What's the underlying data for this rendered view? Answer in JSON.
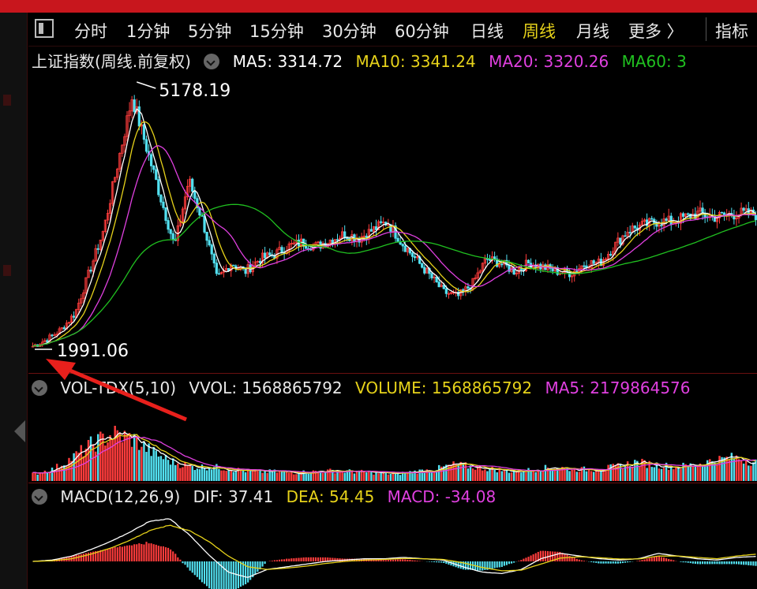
{
  "toolbar": {
    "periods": [
      "分时",
      "1分钟",
      "5分钟",
      "15分钟",
      "30分钟",
      "60分钟",
      "日线",
      "周线",
      "月线",
      "更多 〉"
    ],
    "active_period": "周线",
    "indicator_label": "指标"
  },
  "main": {
    "title": "上证指数(周线.前复权)",
    "ma": [
      {
        "label": "MA5: 3314.72",
        "color": "#ffffff"
      },
      {
        "label": "MA10: 3341.24",
        "color": "#e6d21a"
      },
      {
        "label": "MA20: 3320.26",
        "color": "#e040e0"
      },
      {
        "label": "MA60: 3",
        "color": "#20c020"
      }
    ],
    "high_label": "5178.19",
    "low_label": "1991.06"
  },
  "volume": {
    "title": "VOL-TDX(5,10)",
    "vvol": "VVOL: 1568865792",
    "volume": "VOLUME: 1568865792",
    "ma5": "MA5: 2179864576"
  },
  "macd": {
    "title": "MACD(12,26,9)",
    "dif": "DIF: 37.41",
    "dea": "DEA: 54.45",
    "macd": "MACD: -34.08"
  },
  "colors": {
    "up": "#ff3c3c",
    "down": "#52e0f0",
    "ma5": "#ffffff",
    "ma10": "#e6d21a",
    "ma20": "#e040e0",
    "ma60": "#20c020",
    "annotation_arrow": "#e8201c"
  },
  "chart_data": {
    "type": "candlestick",
    "instrument": "上证指数",
    "period": "周线",
    "ylim": [
      1991.06,
      5178.19
    ],
    "max": 5178.19,
    "min": 1991.06,
    "trend_close": [
      2000,
      2080,
      2200,
      2400,
      2900,
      3400,
      4200,
      5000,
      4400,
      3800,
      3200,
      4000,
      3500,
      2800,
      3000,
      2900,
      3050,
      3100,
      3200,
      3250,
      3200,
      3280,
      3350,
      3300,
      3400,
      3500,
      3250,
      3050,
      2850,
      2650,
      2600,
      2750,
      3050,
      3000,
      2900,
      3000,
      2950,
      2900,
      2880,
      3000,
      3000,
      3200,
      3400,
      3450,
      3500,
      3500,
      3550,
      3600,
      3550,
      3580,
      3600,
      3580
    ],
    "volume_trend": [
      0.15,
      0.25,
      0.5,
      0.8,
      1.0,
      0.9,
      0.6,
      0.4,
      0.3,
      0.3,
      0.25,
      0.2,
      0.2,
      0.18,
      0.2,
      0.22,
      0.2,
      0.18,
      0.15,
      0.2,
      0.25,
      0.35,
      0.3,
      0.25,
      0.2,
      0.25,
      0.3,
      0.25,
      0.25,
      0.3,
      0.4,
      0.35,
      0.3,
      0.35,
      0.45,
      0.5,
      0.4
    ],
    "dif_trend": [
      0,
      10,
      40,
      90,
      150,
      220,
      300,
      320,
      200,
      50,
      -80,
      -120,
      -60,
      -40,
      -20,
      0,
      10,
      20,
      20,
      30,
      20,
      10,
      -40,
      -80,
      -90,
      -60,
      20,
      60,
      40,
      20,
      10,
      20,
      60,
      40,
      20,
      10,
      30,
      37
    ],
    "dea_trend": [
      0,
      5,
      20,
      55,
      100,
      160,
      230,
      270,
      230,
      150,
      40,
      -40,
      -60,
      -50,
      -35,
      -15,
      0,
      10,
      15,
      22,
      20,
      15,
      -10,
      -45,
      -70,
      -65,
      -20,
      25,
      35,
      28,
      18,
      18,
      40,
      40,
      30,
      20,
      40,
      54
    ],
    "last": {
      "ma5": 3314.72,
      "ma10": 3341.24,
      "ma20": 3320.26,
      "vvol": 1568865792,
      "vol_ma5": 2179864576,
      "dif": 37.41,
      "dea": 54.45,
      "macd": -34.08
    }
  }
}
